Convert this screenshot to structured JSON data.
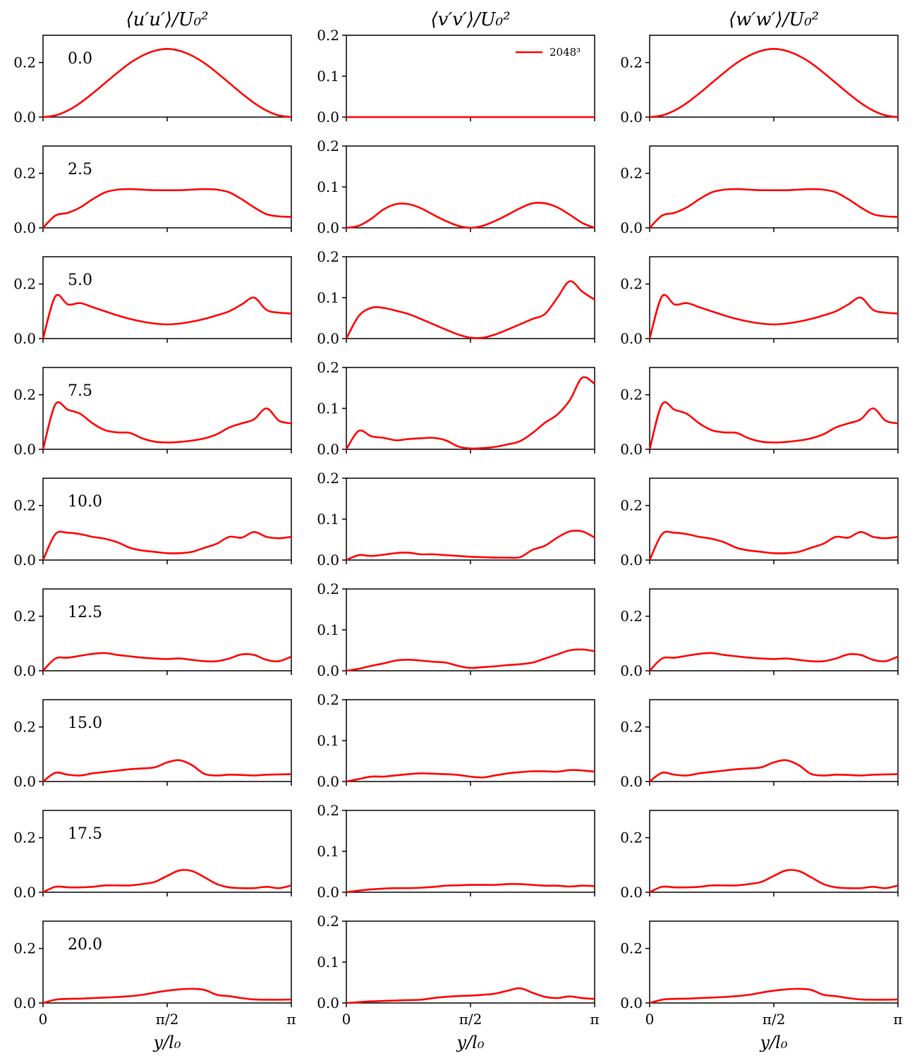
{
  "chart_data": {
    "type": "line",
    "columns": [
      {
        "title": "⟨u′u′⟩/U₀²",
        "ylim": [
          0,
          0.3
        ],
        "yticks": [
          0.0,
          0.2
        ],
        "ytick_labels": [
          "0.0",
          "0.2"
        ]
      },
      {
        "title": "⟨v′v′⟩/U₀²",
        "ylim": [
          0,
          0.2
        ],
        "yticks": [
          0.0,
          0.1,
          0.2
        ],
        "ytick_labels": [
          "0.0",
          "0.1",
          "0.2"
        ]
      },
      {
        "title": "⟨w′w′⟩/U₀²",
        "ylim": [
          0,
          0.3
        ],
        "yticks": [
          0.0,
          0.2
        ],
        "ytick_labels": [
          "0.0",
          "0.2"
        ]
      }
    ],
    "xlabel": "y/l₀",
    "xlim": [
      0,
      3.14159
    ],
    "xticks": [
      0,
      1.5708,
      3.14159
    ],
    "xtick_labels": [
      "0",
      "π/2",
      "π"
    ],
    "times": [
      "0.0",
      "2.5",
      "5.0",
      "7.5",
      "10.0",
      "12.5",
      "15.0",
      "17.5",
      "20.0"
    ],
    "legend": {
      "label": "2048³",
      "color": "#ff0000",
      "placement": "upper-right of top-middle panel"
    },
    "x_sample_fractions": [
      0,
      0.05,
      0.1,
      0.15,
      0.2,
      0.25,
      0.3,
      0.35,
      0.4,
      0.45,
      0.5,
      0.55,
      0.6,
      0.65,
      0.7,
      0.75,
      0.8,
      0.85,
      0.9,
      0.95,
      1
    ],
    "series": {
      "uu": [
        [
          0,
          0.006,
          0.024,
          0.052,
          0.087,
          0.125,
          0.163,
          0.198,
          0.225,
          0.243,
          0.25,
          0.243,
          0.225,
          0.198,
          0.163,
          0.125,
          0.087,
          0.052,
          0.024,
          0.006,
          0
        ],
        [
          0,
          0.045,
          0.055,
          0.075,
          0.105,
          0.13,
          0.14,
          0.142,
          0.14,
          0.138,
          0.138,
          0.138,
          0.14,
          0.142,
          0.14,
          0.13,
          0.105,
          0.075,
          0.05,
          0.042,
          0.04
        ],
        [
          0,
          0.155,
          0.125,
          0.13,
          0.115,
          0.1,
          0.085,
          0.072,
          0.062,
          0.055,
          0.052,
          0.055,
          0.062,
          0.072,
          0.085,
          0.1,
          0.125,
          0.15,
          0.105,
          0.095,
          0.092
        ],
        [
          0,
          0.165,
          0.145,
          0.13,
          0.095,
          0.07,
          0.062,
          0.06,
          0.04,
          0.028,
          0.025,
          0.027,
          0.032,
          0.04,
          0.055,
          0.08,
          0.095,
          0.11,
          0.15,
          0.105,
          0.095
        ],
        [
          0,
          0.095,
          0.1,
          0.095,
          0.085,
          0.078,
          0.065,
          0.045,
          0.035,
          0.03,
          0.025,
          0.025,
          0.03,
          0.045,
          0.06,
          0.085,
          0.082,
          0.103,
          0.085,
          0.08,
          0.085
        ],
        [
          0,
          0.045,
          0.048,
          0.055,
          0.062,
          0.065,
          0.058,
          0.053,
          0.048,
          0.045,
          0.043,
          0.045,
          0.04,
          0.035,
          0.035,
          0.045,
          0.06,
          0.058,
          0.04,
          0.035,
          0.052
        ],
        [
          0,
          0.032,
          0.025,
          0.022,
          0.03,
          0.035,
          0.04,
          0.045,
          0.048,
          0.052,
          0.07,
          0.078,
          0.06,
          0.028,
          0.022,
          0.025,
          0.024,
          0.022,
          0.025,
          0.026,
          0.027
        ],
        [
          0,
          0.02,
          0.018,
          0.018,
          0.02,
          0.025,
          0.025,
          0.025,
          0.03,
          0.038,
          0.06,
          0.08,
          0.078,
          0.055,
          0.03,
          0.018,
          0.015,
          0.015,
          0.02,
          0.015,
          0.025
        ],
        [
          0,
          0.012,
          0.015,
          0.016,
          0.018,
          0.02,
          0.022,
          0.025,
          0.03,
          0.038,
          0.045,
          0.05,
          0.052,
          0.048,
          0.03,
          0.025,
          0.018,
          0.013,
          0.012,
          0.012,
          0.013
        ]
      ],
      "vv": [
        [
          0,
          0,
          0,
          0,
          0,
          0,
          0,
          0,
          0,
          0,
          0,
          0,
          0,
          0,
          0,
          0,
          0,
          0,
          0,
          0,
          0
        ],
        [
          0,
          0.005,
          0.022,
          0.045,
          0.058,
          0.058,
          0.048,
          0.032,
          0.017,
          0.005,
          0,
          0.005,
          0.017,
          0.032,
          0.048,
          0.06,
          0.06,
          0.05,
          0.032,
          0.012,
          0
        ],
        [
          0,
          0.055,
          0.075,
          0.075,
          0.068,
          0.06,
          0.048,
          0.035,
          0.022,
          0.01,
          0.002,
          0.002,
          0.01,
          0.022,
          0.035,
          0.048,
          0.06,
          0.1,
          0.14,
          0.115,
          0.095
        ],
        [
          0,
          0.045,
          0.032,
          0.028,
          0.022,
          0.025,
          0.027,
          0.028,
          0.022,
          0.007,
          0.002,
          0.003,
          0.006,
          0.012,
          0.02,
          0.04,
          0.065,
          0.085,
          0.12,
          0.175,
          0.16
        ],
        [
          0,
          0.012,
          0.01,
          0.013,
          0.017,
          0.018,
          0.014,
          0.014,
          0.012,
          0.01,
          0.008,
          0.007,
          0.006,
          0.006,
          0.007,
          0.025,
          0.035,
          0.055,
          0.07,
          0.07,
          0.055
        ],
        [
          0,
          0.005,
          0.012,
          0.018,
          0.025,
          0.027,
          0.025,
          0.022,
          0.02,
          0.012,
          0.007,
          0.009,
          0.011,
          0.014,
          0.016,
          0.02,
          0.03,
          0.04,
          0.05,
          0.052,
          0.048
        ],
        [
          0,
          0.006,
          0.012,
          0.012,
          0.015,
          0.018,
          0.02,
          0.019,
          0.018,
          0.016,
          0.012,
          0.01,
          0.015,
          0.02,
          0.023,
          0.025,
          0.025,
          0.024,
          0.028,
          0.027,
          0.024
        ],
        [
          0,
          0.004,
          0.007,
          0.009,
          0.01,
          0.01,
          0.011,
          0.013,
          0.016,
          0.017,
          0.018,
          0.018,
          0.018,
          0.02,
          0.02,
          0.018,
          0.016,
          0.016,
          0.014,
          0.016,
          0.015
        ],
        [
          0,
          0.002,
          0.004,
          0.005,
          0.006,
          0.007,
          0.008,
          0.012,
          0.015,
          0.017,
          0.018,
          0.02,
          0.023,
          0.03,
          0.036,
          0.025,
          0.015,
          0.012,
          0.016,
          0.012,
          0.01
        ]
      ],
      "ww": [
        [
          0,
          0.006,
          0.024,
          0.052,
          0.087,
          0.125,
          0.163,
          0.198,
          0.225,
          0.243,
          0.25,
          0.243,
          0.225,
          0.198,
          0.163,
          0.125,
          0.087,
          0.052,
          0.024,
          0.006,
          0
        ],
        [
          0,
          0.045,
          0.055,
          0.075,
          0.105,
          0.13,
          0.14,
          0.142,
          0.14,
          0.138,
          0.138,
          0.138,
          0.14,
          0.142,
          0.14,
          0.13,
          0.105,
          0.075,
          0.05,
          0.042,
          0.04
        ],
        [
          0,
          0.155,
          0.125,
          0.13,
          0.115,
          0.1,
          0.085,
          0.072,
          0.062,
          0.055,
          0.052,
          0.055,
          0.062,
          0.072,
          0.085,
          0.1,
          0.125,
          0.15,
          0.105,
          0.095,
          0.092
        ],
        [
          0,
          0.165,
          0.145,
          0.13,
          0.095,
          0.07,
          0.062,
          0.06,
          0.04,
          0.028,
          0.025,
          0.027,
          0.032,
          0.04,
          0.055,
          0.08,
          0.095,
          0.11,
          0.15,
          0.105,
          0.095
        ],
        [
          0,
          0.095,
          0.1,
          0.095,
          0.085,
          0.078,
          0.065,
          0.045,
          0.035,
          0.03,
          0.025,
          0.025,
          0.03,
          0.045,
          0.06,
          0.085,
          0.082,
          0.103,
          0.085,
          0.08,
          0.085
        ],
        [
          0,
          0.045,
          0.048,
          0.055,
          0.062,
          0.065,
          0.058,
          0.053,
          0.048,
          0.045,
          0.043,
          0.045,
          0.04,
          0.035,
          0.035,
          0.045,
          0.06,
          0.058,
          0.04,
          0.035,
          0.052
        ],
        [
          0,
          0.032,
          0.025,
          0.022,
          0.03,
          0.035,
          0.04,
          0.045,
          0.048,
          0.052,
          0.07,
          0.078,
          0.06,
          0.028,
          0.022,
          0.025,
          0.024,
          0.022,
          0.025,
          0.026,
          0.027
        ],
        [
          0,
          0.02,
          0.018,
          0.018,
          0.02,
          0.025,
          0.025,
          0.025,
          0.03,
          0.038,
          0.06,
          0.08,
          0.078,
          0.055,
          0.03,
          0.018,
          0.015,
          0.015,
          0.02,
          0.015,
          0.025
        ],
        [
          0,
          0.012,
          0.015,
          0.016,
          0.018,
          0.02,
          0.022,
          0.025,
          0.03,
          0.038,
          0.045,
          0.05,
          0.052,
          0.048,
          0.03,
          0.025,
          0.018,
          0.013,
          0.012,
          0.012,
          0.013
        ]
      ]
    }
  }
}
